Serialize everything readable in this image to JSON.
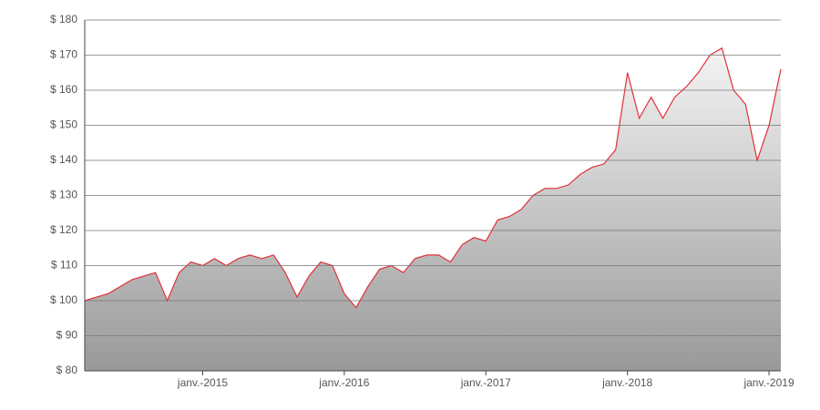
{
  "chart_data": {
    "type": "area",
    "x": [
      "2014-03",
      "2014-04",
      "2014-05",
      "2014-06",
      "2014-07",
      "2014-08",
      "2014-09",
      "2014-10",
      "2014-11",
      "2014-12",
      "2015-01",
      "2015-02",
      "2015-03",
      "2015-04",
      "2015-05",
      "2015-06",
      "2015-07",
      "2015-08",
      "2015-09",
      "2015-10",
      "2015-11",
      "2015-12",
      "2016-01",
      "2016-02",
      "2016-03",
      "2016-04",
      "2016-05",
      "2016-06",
      "2016-07",
      "2016-08",
      "2016-09",
      "2016-10",
      "2016-11",
      "2016-12",
      "2017-01",
      "2017-02",
      "2017-03",
      "2017-04",
      "2017-05",
      "2017-06",
      "2017-07",
      "2017-08",
      "2017-09",
      "2017-10",
      "2017-11",
      "2017-12",
      "2018-01",
      "2018-02",
      "2018-03",
      "2018-04",
      "2018-05",
      "2018-06",
      "2018-07",
      "2018-08",
      "2018-09",
      "2018-10",
      "2018-11",
      "2018-12",
      "2019-01",
      "2019-02"
    ],
    "series": [
      {
        "color": "#e0303a",
        "values": [
          100,
          101,
          102,
          104,
          106,
          107,
          108,
          100,
          108,
          111,
          110,
          112,
          110,
          112,
          113,
          112,
          113,
          108,
          101,
          107,
          111,
          110,
          102,
          98,
          104,
          109,
          110,
          108,
          112,
          113,
          113,
          111,
          116,
          118,
          117,
          123,
          124,
          126,
          130,
          132,
          132,
          133,
          136,
          138,
          139,
          143,
          165,
          152,
          158,
          152,
          158,
          161,
          165,
          170,
          172,
          160,
          156,
          140,
          150,
          166
        ]
      }
    ],
    "xlim": [
      "2014-03",
      "2019-02"
    ],
    "xticks": [
      {
        "value": "2015-01",
        "label": "janv.-2015"
      },
      {
        "value": "2016-01",
        "label": "janv.-2016"
      },
      {
        "value": "2017-01",
        "label": "janv.-2017"
      },
      {
        "value": "2018-01",
        "label": "janv.-2018"
      },
      {
        "value": "2019-01",
        "label": "janv.-2019"
      }
    ],
    "ylim": [
      80,
      180
    ],
    "yticks": [
      {
        "value": 80,
        "label": "$ 80"
      },
      {
        "value": 90,
        "label": "$ 90"
      },
      {
        "value": 100,
        "label": "$ 100"
      },
      {
        "value": 110,
        "label": "$ 110"
      },
      {
        "value": 120,
        "label": "$ 120"
      },
      {
        "value": 130,
        "label": "$ 130"
      },
      {
        "value": 140,
        "label": "$ 140"
      },
      {
        "value": 150,
        "label": "$ 150"
      },
      {
        "value": 160,
        "label": "$ 160"
      },
      {
        "value": 170,
        "label": "$ 170"
      },
      {
        "value": 180,
        "label": "$ 180"
      }
    ],
    "grid": true
  }
}
